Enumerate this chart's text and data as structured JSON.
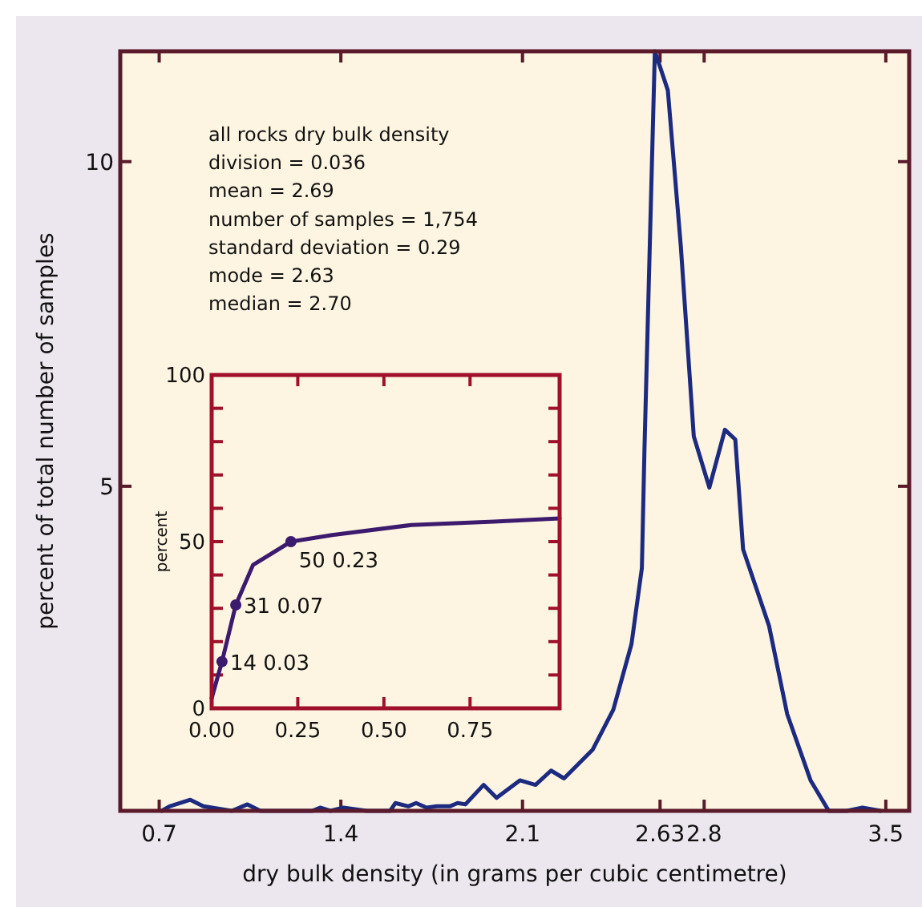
{
  "chart_data": [
    {
      "type": "line",
      "xlabel": "dry bulk density (in grams per cubic centimetre)",
      "ylabel": "percent of total number of samples",
      "xlim": [
        0.55,
        3.59
      ],
      "ylim": [
        0,
        11.7
      ],
      "xticks": [
        0.7,
        1.4,
        2.1,
        2.63,
        2.8,
        3.5
      ],
      "yticks": [
        5,
        10
      ],
      "annotations": [
        "all rocks dry bulk density",
        "division = 0.036",
        "mean = 2.69",
        "number of samples = 1,754",
        "standard deviation = 0.29",
        "mode = 2.63",
        "median = 2.70"
      ],
      "series": [
        {
          "color": "#1c2a80",
          "x": [
            0.71,
            0.74,
            0.82,
            0.87,
            0.98,
            1.04,
            1.09,
            1.29,
            1.32,
            1.36,
            1.41,
            1.5,
            1.59,
            1.61,
            1.66,
            1.69,
            1.73,
            1.77,
            1.82,
            1.85,
            1.88,
            1.95,
            2.0,
            2.09,
            2.15,
            2.21,
            2.26,
            2.37,
            2.45,
            2.52,
            2.56,
            2.57,
            2.61,
            2.66,
            2.71,
            2.76,
            2.82,
            2.88,
            2.92,
            2.95,
            3.05,
            3.12,
            3.21,
            3.28,
            3.35,
            3.41,
            3.48
          ],
          "values": [
            0,
            0.07,
            0.17,
            0.07,
            0,
            0.1,
            0,
            0,
            0.05,
            0,
            0.05,
            0,
            0,
            0.12,
            0.07,
            0.12,
            0.05,
            0.07,
            0.07,
            0.12,
            0.1,
            0.4,
            0.2,
            0.47,
            0.4,
            0.62,
            0.5,
            0.94,
            1.56,
            2.57,
            3.74,
            5.57,
            11.7,
            11.1,
            8.7,
            5.77,
            4.98,
            5.87,
            5.72,
            4.03,
            2.85,
            1.49,
            0.47,
            0,
            0,
            0.05,
            0
          ]
        }
      ]
    },
    {
      "type": "line",
      "ylabel": "percent",
      "xlim": [
        0,
        1.01
      ],
      "ylim": [
        0,
        100
      ],
      "xticks": [
        {
          "value": 0,
          "label": "0.00"
        },
        {
          "value": 0.25,
          "label": "0.25"
        },
        {
          "value": 0.5,
          "label": "0.50"
        },
        {
          "value": 0.75,
          "label": "0.75"
        }
      ],
      "yticks": [
        0,
        {
          "value": 10,
          "label": null
        },
        {
          "value": 20,
          "label": null
        },
        {
          "value": 30,
          "label": null
        },
        {
          "value": 40,
          "label": null
        },
        50,
        {
          "value": 60,
          "label": null
        },
        {
          "value": 70,
          "label": null
        },
        {
          "value": 80,
          "label": null
        },
        {
          "value": 90,
          "label": null
        },
        100
      ],
      "series": [
        {
          "color": "#3c1a6e",
          "x": [
            0,
            0.03,
            0.07,
            0.12,
            0.23,
            0.35,
            0.58,
            0.82,
            1.01
          ],
          "values": [
            3,
            14,
            31,
            43,
            50,
            52,
            55,
            56,
            57
          ]
        },
        {
          "type": "scatter",
          "marker": "circle",
          "color": "#3c1a6e",
          "x": [
            0.03,
            0.07,
            0.23
          ],
          "values": [
            14,
            31,
            50
          ],
          "value_labels": [
            "14 0.03",
            "31 0.07",
            "50 0.23"
          ]
        }
      ]
    }
  ]
}
